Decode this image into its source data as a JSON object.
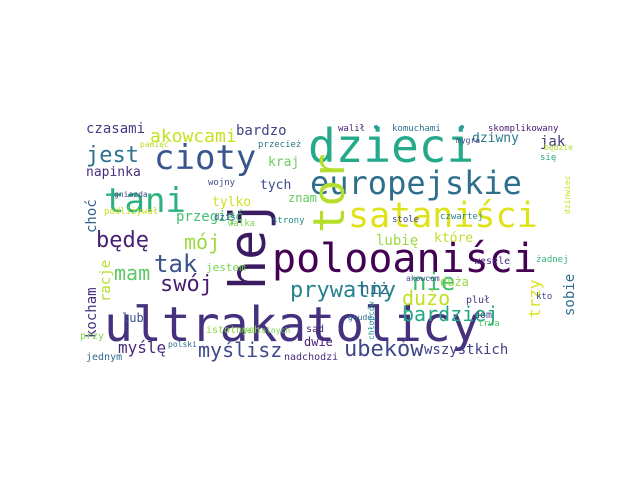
{
  "word_cloud": {
    "words": [
      {
        "text": "ultrakatolicy",
        "color": "#46317e"
      },
      {
        "text": "polooaniści",
        "color": "#440154"
      },
      {
        "text": "dzieci",
        "color": "#25a98b"
      },
      {
        "text": "europejskie",
        "color": "#2e6f8e"
      },
      {
        "text": "hej",
        "color": "#3b1c62"
      },
      {
        "text": "satan­iści",
        "color": "#dde318"
      },
      {
        "text": "tani",
        "color": "#2cb17e"
      },
      {
        "text": "tor",
        "color": "#b5de2b"
      },
      {
        "text": "cioty",
        "color": "#39568c"
      },
      {
        "text": "prywatny",
        "color": "#26828e"
      },
      {
        "text": "ubeków",
        "color": "#404688"
      },
      {
        "text": "nie",
        "color": "#3fbc73"
      },
      {
        "text": "bardziej",
        "color": "#22a884"
      },
      {
        "text": "dużo",
        "color": "#c2df23"
      },
      {
        "text": "tak",
        "color": "#3b528b"
      },
      {
        "text": "swój",
        "color": "#481f70"
      },
      {
        "text": "jest",
        "color": "#2c728e"
      },
      {
        "text": "mam",
        "color": "#5ac864"
      },
      {
        "text": "będę",
        "color": "#482173"
      },
      {
        "text": "mój",
        "color": "#9bd93c"
      },
      {
        "text": "myślisz",
        "color": "#3e4989"
      },
      {
        "text": "akowcami",
        "color": "#c8e020"
      },
      {
        "text": "myślę",
        "color": "#482878"
      },
      {
        "text": "kocham",
        "color": "#46307e"
      },
      {
        "text": "wszystkich",
        "color": "#424086"
      },
      {
        "text": "niż",
        "color": "#31678e"
      },
      {
        "text": "trzy",
        "color": "#d8e219"
      },
      {
        "text": "sobie",
        "color": "#2f6c8e"
      },
      {
        "text": "czasami",
        "color": "#433e85"
      },
      {
        "text": "bardzo",
        "color": "#414487"
      },
      {
        "text": "dziwny",
        "color": "#2a788e"
      },
      {
        "text": "jak",
        "color": "#453781"
      },
      {
        "text": "napinka",
        "color": "#472d7b"
      },
      {
        "text": "kraj",
        "color": "#6ccd5a"
      },
      {
        "text": "tych",
        "color": "#3e4a89"
      },
      {
        "text": "tylko",
        "color": "#d0e11c"
      },
      {
        "text": "przegięć",
        "color": "#44bf70"
      },
      {
        "text": "znam",
        "color": "#62cb5f"
      },
      {
        "text": "lubię",
        "color": "#9dd93b"
      },
      {
        "text": "które",
        "color": "#c0df25"
      },
      {
        "text": "choć",
        "color": "#34618d"
      },
      {
        "text": "jestem",
        "color": "#7ad151"
      },
      {
        "text": "racje",
        "color": "#b2dd2d"
      },
      {
        "text": "lub",
        "color": "#3a538b"
      },
      {
        "text": "duża",
        "color": "#95d840"
      },
      {
        "text": "dwie",
        "color": "#482475"
      },
      {
        "text": "wesele",
        "color": "#472f7d"
      },
      {
        "text": "żadnej",
        "color": "#2fb47c"
      },
      {
        "text": "dom",
        "color": "#3f4788"
      },
      {
        "text": "kto",
        "color": "#3d4d8a"
      },
      {
        "text": "sąd",
        "color": "#482374"
      },
      {
        "text": "pluł",
        "color": "#453882"
      },
      {
        "text": "przy",
        "color": "#7fd34e"
      },
      {
        "text": "jednym",
        "color": "#2f6b8e"
      },
      {
        "text": "nadchodzi",
        "color": "#472c7a"
      },
      {
        "text": "istotnych",
        "color": "#8ed645"
      },
      {
        "text": "wojny",
        "color": "#3f4889"
      },
      {
        "text": "dziś",
        "color": "#33628d"
      },
      {
        "text": "strony",
        "color": "#23898e"
      },
      {
        "text": "walił",
        "color": "#482071"
      },
      {
        "text": "komuchami",
        "color": "#2c738e"
      },
      {
        "text": "skomplikowany",
        "color": "#481c6e"
      },
      {
        "text": "pamięć",
        "color": "#b8de29"
      },
      {
        "text": "przecież",
        "color": "#2a768e"
      },
      {
        "text": "mygra",
        "color": "#424186"
      },
      {
        "text": "gniazda",
        "color": "#3e4c8a"
      },
      {
        "text": "podliżywał",
        "color": "#cae11f"
      },
      {
        "text": "walka",
        "color": "#7cd250"
      },
      {
        "text": "stole",
        "color": "#404387"
      },
      {
        "text": "czwartej",
        "color": "#25838e"
      },
      {
        "text": "się",
        "color": "#23a983"
      },
      {
        "text": "akowcom",
        "color": "#3d4e8a"
      },
      {
        "text": "goudę",
        "color": "#2d708e"
      },
      {
        "text": "chłopców",
        "color": "#21918c"
      },
      {
        "text": "trwa",
        "color": "#54c568"
      },
      {
        "text": "polski",
        "color": "#31688e"
      },
      {
        "text": "medialnych",
        "color": "#7ad151"
      },
      {
        "text": "będzie",
        "color": "#b2dd2d"
      },
      {
        "text": "dzinwiec",
        "color": "#c8e020"
      }
    ]
  }
}
